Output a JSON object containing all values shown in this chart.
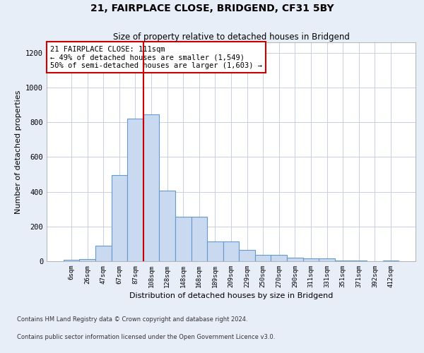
{
  "title": "21, FAIRPLACE CLOSE, BRIDGEND, CF31 5BY",
  "subtitle": "Size of property relative to detached houses in Bridgend",
  "xlabel": "Distribution of detached houses by size in Bridgend",
  "ylabel": "Number of detached properties",
  "footnote1": "Contains HM Land Registry data © Crown copyright and database right 2024.",
  "footnote2": "Contains public sector information licensed under the Open Government Licence v3.0.",
  "bin_labels": [
    "6sqm",
    "26sqm",
    "47sqm",
    "67sqm",
    "87sqm",
    "108sqm",
    "128sqm",
    "148sqm",
    "168sqm",
    "189sqm",
    "209sqm",
    "229sqm",
    "250sqm",
    "270sqm",
    "290sqm",
    "311sqm",
    "331sqm",
    "351sqm",
    "371sqm",
    "392sqm",
    "412sqm"
  ],
  "bar_values": [
    8,
    12,
    90,
    495,
    820,
    845,
    405,
    255,
    255,
    115,
    115,
    65,
    35,
    35,
    20,
    15,
    15,
    5,
    5,
    0,
    5
  ],
  "bar_color": "#c8d9f0",
  "bar_edge_color": "#6699cc",
  "vline_x_index": 5.0,
  "vline_color": "#cc0000",
  "annotation_text": "21 FAIRPLACE CLOSE: 111sqm\n← 49% of detached houses are smaller (1,549)\n50% of semi-detached houses are larger (1,603) →",
  "annotation_box_color": "white",
  "annotation_box_edge_color": "#cc0000",
  "ylim": [
    0,
    1260
  ],
  "yticks": [
    0,
    200,
    400,
    600,
    800,
    1000,
    1200
  ],
  "background_color": "#e8eef8",
  "plot_background": "white",
  "grid_color": "#c8d0e0"
}
